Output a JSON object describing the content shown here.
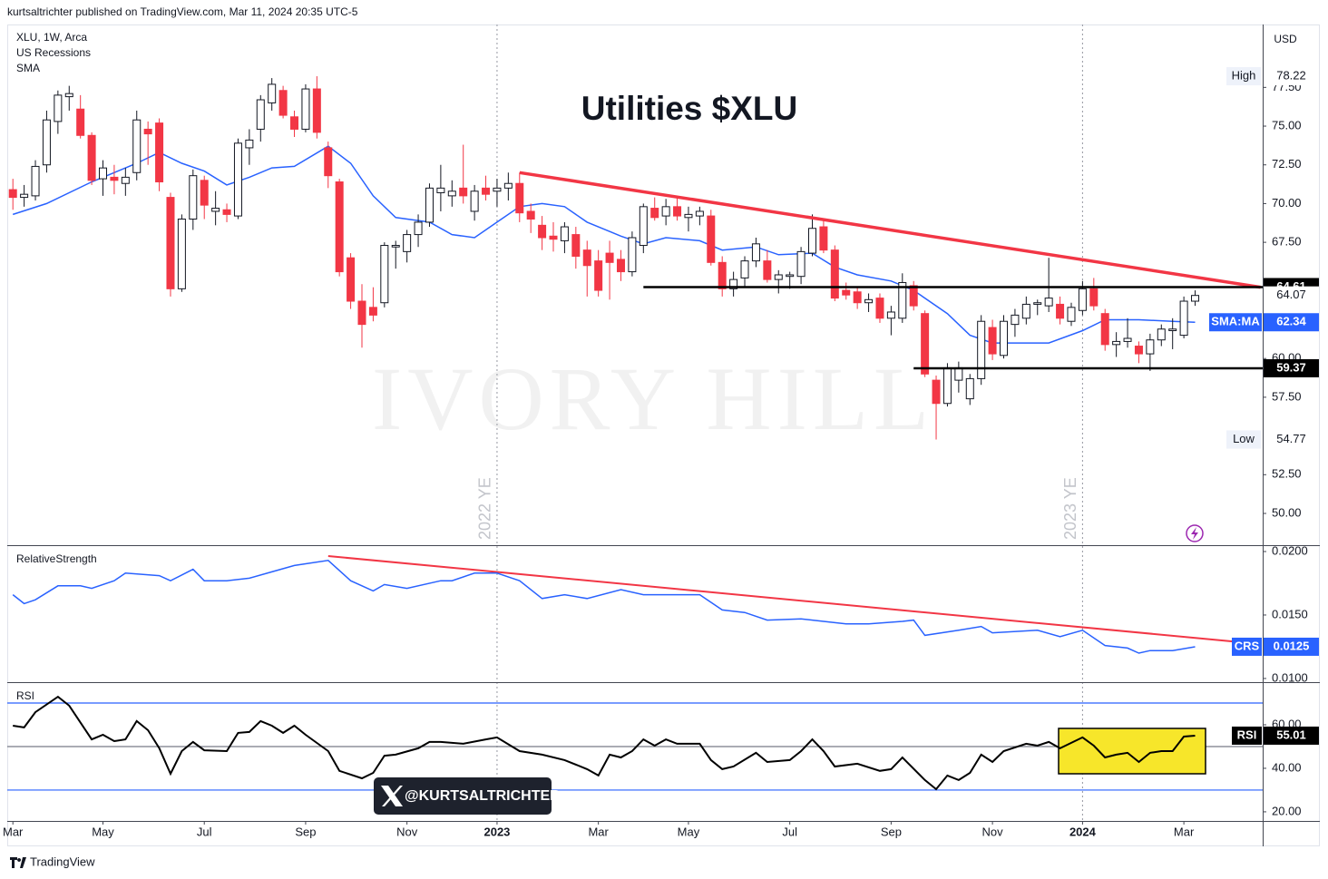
{
  "header": {
    "published": "kurtsaltrichter published on TradingView.com, Mar 11, 2024 20:35 UTC-5"
  },
  "watermark": "IVORY HILL",
  "badge": "@KURTSALTRICHTER",
  "footer": {
    "brand": "TradingView"
  },
  "chart_data": [
    {
      "type": "candlestick",
      "title": "Utilities $XLU",
      "legend": [
        "XLU, 1W, Arca",
        "US Recessions",
        "SMA"
      ],
      "currency": "USD",
      "up_color": "#ffffff",
      "down_color": "#f23645",
      "open": [
        70.9,
        70.4,
        70.5,
        72.5,
        75.3,
        76.9,
        76.1,
        74.4,
        71.6,
        71.7,
        71.3,
        72.0,
        74.8,
        75.2,
        70.4,
        64.5,
        69.0,
        71.5,
        69.5,
        69.6,
        69.2,
        73.6,
        74.8,
        76.5,
        77.3,
        75.6,
        74.8,
        77.4,
        73.6,
        71.4,
        66.5,
        63.7,
        63.3,
        63.6,
        67.2,
        66.9,
        68.0,
        68.8,
        70.7,
        70.5,
        71.0,
        69.5,
        71.0,
        70.8,
        71.0,
        71.3,
        69.5,
        68.6,
        67.9,
        67.6,
        68.0,
        67.0,
        66.3,
        66.8,
        66.4,
        65.6,
        67.3,
        69.7,
        69.2,
        69.8,
        69.1,
        69.2,
        69.2,
        66.2,
        64.5,
        65.2,
        66.3,
        66.3,
        65.1,
        65.3,
        65.3,
        66.8,
        68.5,
        67.0,
        64.4,
        64.3,
        63.6,
        63.9,
        62.6,
        62.6,
        64.7,
        62.9,
        58.6,
        57.1,
        58.6,
        57.4,
        58.7,
        62.0,
        60.2,
        62.2,
        62.6,
        63.5,
        63.4,
        63.5,
        62.4,
        63.1,
        64.5,
        62.9,
        60.9,
        61.1,
        60.8,
        60.3,
        61.2,
        61.8,
        61.5,
        63.7
      ],
      "high": [
        71.6,
        71.2,
        72.8,
        76.0,
        77.3,
        77.6,
        77.0,
        74.6,
        72.8,
        72.5,
        72.3,
        76.0,
        75.3,
        75.5,
        70.7,
        69.3,
        72.2,
        71.8,
        70.8,
        70.0,
        74.2,
        74.8,
        77.0,
        78.1,
        77.6,
        76.0,
        77.7,
        78.22,
        74.0,
        71.6,
        66.8,
        64.8,
        64.6,
        67.5,
        67.6,
        68.3,
        69.3,
        71.3,
        72.5,
        71.5,
        73.8,
        71.2,
        71.8,
        71.6,
        72.0,
        72.0,
        70.0,
        69.2,
        68.8,
        68.8,
        68.5,
        67.6,
        67.0,
        67.6,
        67.0,
        68.2,
        70.0,
        70.4,
        70.3,
        70.4,
        69.8,
        69.8,
        69.6,
        66.6,
        65.6,
        66.6,
        67.8,
        67.0,
        65.7,
        65.6,
        67.2,
        69.3,
        69.0,
        67.3,
        64.9,
        64.6,
        64.2,
        64.2,
        63.4,
        65.5,
        65.0,
        63.1,
        58.9,
        59.7,
        59.8,
        59.0,
        62.8,
        62.5,
        62.8,
        63.2,
        64.0,
        63.8,
        66.5,
        64.0,
        63.6,
        65.0,
        65.2,
        63.2,
        61.7,
        62.6,
        61.1,
        61.6,
        62.2,
        62.6,
        64.0,
        64.4
      ],
      "low": [
        69.6,
        69.8,
        70.2,
        72.0,
        74.5,
        76.0,
        74.2,
        71.2,
        70.5,
        70.6,
        70.5,
        71.5,
        72.5,
        70.8,
        64.0,
        64.3,
        68.3,
        69.0,
        68.6,
        68.8,
        69.0,
        72.5,
        74.0,
        76.0,
        75.5,
        74.3,
        74.6,
        74.2,
        71.0,
        65.3,
        63.2,
        60.7,
        62.4,
        63.3,
        65.8,
        66.2,
        67.2,
        68.5,
        69.5,
        69.8,
        70.0,
        68.9,
        70.2,
        69.8,
        70.2,
        68.8,
        68.1,
        67.0,
        66.9,
        66.8,
        65.8,
        64.0,
        64.0,
        63.8,
        65.0,
        65.3,
        66.8,
        68.9,
        68.6,
        68.9,
        68.2,
        68.6,
        66.0,
        64.0,
        64.0,
        64.6,
        65.9,
        64.9,
        64.2,
        64.5,
        64.8,
        66.6,
        66.8,
        63.7,
        63.8,
        63.2,
        63.0,
        62.3,
        61.5,
        62.3,
        63.1,
        58.8,
        54.77,
        56.9,
        57.8,
        57.0,
        58.3,
        59.9,
        60.0,
        61.4,
        62.2,
        62.8,
        63.0,
        62.2,
        62.1,
        62.8,
        63.1,
        60.5,
        60.1,
        60.7,
        59.7,
        59.2,
        60.8,
        60.6,
        61.3,
        63.4
      ],
      "close": [
        70.4,
        70.6,
        72.4,
        75.4,
        77.0,
        77.1,
        74.4,
        71.5,
        72.3,
        71.5,
        71.7,
        75.4,
        74.5,
        71.4,
        64.5,
        69.0,
        71.8,
        69.9,
        69.7,
        69.3,
        73.9,
        74.1,
        76.7,
        77.7,
        75.7,
        74.8,
        77.4,
        74.6,
        71.8,
        65.6,
        63.7,
        62.2,
        62.8,
        67.3,
        67.3,
        68.0,
        68.8,
        71.0,
        71.0,
        70.8,
        70.5,
        70.8,
        70.6,
        71.0,
        71.3,
        69.4,
        69.0,
        67.8,
        67.7,
        68.5,
        66.6,
        66.0,
        64.4,
        66.2,
        65.6,
        67.8,
        69.8,
        69.1,
        69.8,
        69.2,
        69.3,
        69.5,
        66.2,
        64.5,
        65.1,
        66.3,
        67.4,
        65.1,
        65.4,
        65.4,
        66.9,
        68.4,
        67.0,
        63.9,
        64.1,
        63.6,
        63.8,
        62.6,
        63.0,
        64.9,
        63.4,
        59.0,
        57.1,
        59.4,
        59.4,
        58.7,
        62.4,
        60.3,
        62.4,
        62.8,
        63.5,
        63.6,
        63.9,
        62.6,
        63.3,
        64.5,
        63.4,
        60.9,
        61.1,
        61.3,
        60.3,
        61.2,
        61.9,
        61.9,
        63.7,
        64.07
      ],
      "sma": {
        "name": "SMA:MA",
        "color": "#2962ff",
        "x": [
          0,
          3,
          7,
          11,
          13,
          15,
          17,
          19,
          21,
          23,
          25,
          28,
          30,
          32,
          34,
          37,
          39,
          41,
          43,
          45,
          47,
          49,
          51,
          54,
          56,
          58,
          61,
          63,
          66,
          68,
          71,
          73,
          75,
          78,
          80,
          83,
          85,
          87,
          90,
          92,
          95,
          97,
          100,
          103,
          105
        ],
        "values": [
          69.3,
          70.0,
          71.4,
          72.6,
          73.3,
          72.6,
          72.1,
          71.2,
          71.7,
          72.3,
          72.4,
          73.7,
          72.6,
          70.5,
          69.1,
          68.8,
          68.0,
          67.8,
          68.8,
          69.8,
          70.0,
          69.8,
          68.8,
          67.9,
          67.4,
          67.8,
          67.6,
          67.0,
          67.2,
          66.7,
          66.8,
          65.9,
          65.4,
          65.0,
          64.4,
          62.9,
          61.5,
          61.0,
          61.0,
          61.0,
          61.8,
          62.5,
          62.5,
          62.4,
          62.34
        ]
      },
      "trendline": {
        "color": "#f23645",
        "x": [
          45,
          110.8
        ],
        "values": [
          72.0,
          64.6
        ]
      },
      "levels": [
        {
          "value": 64.61,
          "x_start": 56
        },
        {
          "value": 59.37,
          "x_start": 80
        }
      ],
      "high_mark": {
        "label": "High",
        "value": 78.22
      },
      "low_mark": {
        "label": "Low",
        "value": 54.77
      },
      "markers": [
        {
          "x": 43,
          "label": "2022 YE"
        },
        {
          "x": 95,
          "label": "2023 YE"
        }
      ],
      "xlim": [
        -0.5,
        111
      ],
      "xticks": [
        {
          "value": 0,
          "label": "Mar"
        },
        {
          "value": 8,
          "label": "May"
        },
        {
          "value": 17,
          "label": "Jul"
        },
        {
          "value": 26,
          "label": "Sep"
        },
        {
          "value": 35,
          "label": "Nov"
        },
        {
          "value": 43,
          "label": "2023"
        },
        {
          "value": 52,
          "label": "Mar"
        },
        {
          "value": 60,
          "label": "May"
        },
        {
          "value": 69,
          "label": "Jul"
        },
        {
          "value": 78,
          "label": "Sep"
        },
        {
          "value": 87,
          "label": "Nov"
        },
        {
          "value": 95,
          "label": "2024"
        },
        {
          "value": 104,
          "label": "Mar"
        }
      ],
      "ylim": [
        47.95,
        81.56
      ],
      "yticks": [
        {
          "value": 50,
          "label": "50.00"
        },
        {
          "value": 52.5,
          "label": "52.50"
        },
        {
          "value": 57.5,
          "label": "57.50"
        },
        {
          "value": 60,
          "label": "60.00"
        },
        {
          "value": 67.5,
          "label": "67.50"
        },
        {
          "value": 70,
          "label": "70.00"
        },
        {
          "value": 72.5,
          "label": "72.50"
        },
        {
          "value": 75,
          "label": "75.00"
        },
        {
          "value": 77.5,
          "label": "77.50"
        }
      ]
    },
    {
      "type": "line",
      "title": "RelativeStrength",
      "series": [
        {
          "name": "CRS",
          "color": "#2962ff",
          "x": [
            0,
            1,
            2,
            4,
            6,
            7,
            9,
            10,
            13,
            14,
            16,
            17,
            19,
            21,
            23,
            25,
            28,
            30,
            32,
            33,
            35,
            38,
            39,
            41,
            43,
            45,
            47,
            49,
            51,
            54,
            56,
            59,
            61,
            63,
            65,
            67,
            70,
            72,
            74,
            76,
            79,
            80,
            81,
            84,
            86,
            87,
            91,
            93,
            95,
            97,
            99,
            100,
            101,
            103,
            105
          ],
          "values": [
            0.0166,
            0.0159,
            0.0162,
            0.0173,
            0.0173,
            0.0171,
            0.0177,
            0.0183,
            0.0181,
            0.0177,
            0.0186,
            0.0177,
            0.0177,
            0.0179,
            0.0184,
            0.0189,
            0.0193,
            0.0177,
            0.0169,
            0.0174,
            0.0171,
            0.0177,
            0.0177,
            0.0183,
            0.0183,
            0.0177,
            0.0163,
            0.0166,
            0.0163,
            0.017,
            0.0166,
            0.0166,
            0.0166,
            0.0154,
            0.0152,
            0.0146,
            0.0147,
            0.0145,
            0.0143,
            0.0143,
            0.0145,
            0.0146,
            0.0134,
            0.0138,
            0.0141,
            0.0136,
            0.0138,
            0.0133,
            0.0138,
            0.0126,
            0.0124,
            0.012,
            0.0122,
            0.0122,
            0.0125
          ]
        }
      ],
      "trendline": {
        "color": "#f23645",
        "x": [
          28,
          110.8
        ],
        "values": [
          0.01964,
          0.01271
        ]
      },
      "ylim": [
        0.00971,
        0.0205
      ],
      "yticks": [
        {
          "value": 0.01,
          "label": "0.0100"
        },
        {
          "value": 0.015,
          "label": "0.0150"
        },
        {
          "value": 0.02,
          "label": "0.0200"
        }
      ]
    },
    {
      "type": "line",
      "title": "RSI",
      "series": [
        {
          "name": "RSI",
          "color": "#000000",
          "x": [
            0,
            1,
            2,
            4,
            5,
            7,
            8,
            9,
            10,
            11,
            12,
            13,
            14,
            15,
            16,
            17,
            19,
            20,
            21,
            22,
            23,
            24,
            25,
            26,
            28,
            29,
            31,
            32,
            33,
            34,
            36,
            37,
            38,
            40,
            42,
            43,
            45,
            47,
            49,
            51,
            52,
            53,
            54,
            55,
            56,
            57,
            58,
            59,
            61,
            62,
            63,
            64,
            66,
            67,
            69,
            70,
            71,
            72,
            73,
            75,
            77,
            78,
            79,
            81,
            82,
            83,
            84,
            85,
            86,
            87,
            88,
            90,
            91,
            92,
            93,
            95,
            96,
            97,
            98,
            99,
            100,
            101,
            102,
            103,
            104,
            105
          ],
          "values": [
            59.6,
            58.8,
            65.8,
            72.9,
            68.8,
            53.3,
            55.4,
            52.5,
            53.3,
            61.7,
            57.5,
            49.2,
            37.5,
            47.9,
            52.1,
            48.3,
            47.9,
            56.3,
            56.7,
            61.7,
            59.6,
            56.3,
            59.6,
            55.4,
            47.9,
            38.8,
            35.4,
            37.9,
            45.8,
            46.3,
            49.2,
            52.1,
            52.1,
            51.3,
            53.3,
            54.2,
            47.9,
            46.3,
            43.8,
            39.6,
            36.7,
            46.3,
            45.0,
            47.9,
            53.3,
            50.4,
            53.3,
            51.3,
            51.3,
            43.8,
            39.6,
            40.8,
            47.1,
            42.9,
            43.8,
            47.9,
            53.3,
            47.9,
            40.8,
            42.1,
            38.8,
            39.6,
            45.0,
            34.6,
            30.4,
            36.7,
            34.6,
            37.9,
            46.3,
            42.9,
            47.9,
            51.3,
            50.4,
            52.1,
            49.2,
            54.2,
            50.4,
            45.0,
            46.3,
            47.1,
            42.9,
            47.1,
            47.9,
            47.9,
            54.6,
            55.01
          ]
        }
      ],
      "bands": [
        {
          "value": 70,
          "color": "#2962ff"
        },
        {
          "value": 50,
          "color": "#787b86"
        },
        {
          "value": 30,
          "color": "#2962ff"
        }
      ],
      "ylim": [
        15.8,
        79.6
      ],
      "yticks": [
        {
          "value": 20,
          "label": "20.00"
        },
        {
          "value": 40,
          "label": "40.00"
        },
        {
          "value": 60,
          "label": "60.00"
        }
      ]
    }
  ]
}
